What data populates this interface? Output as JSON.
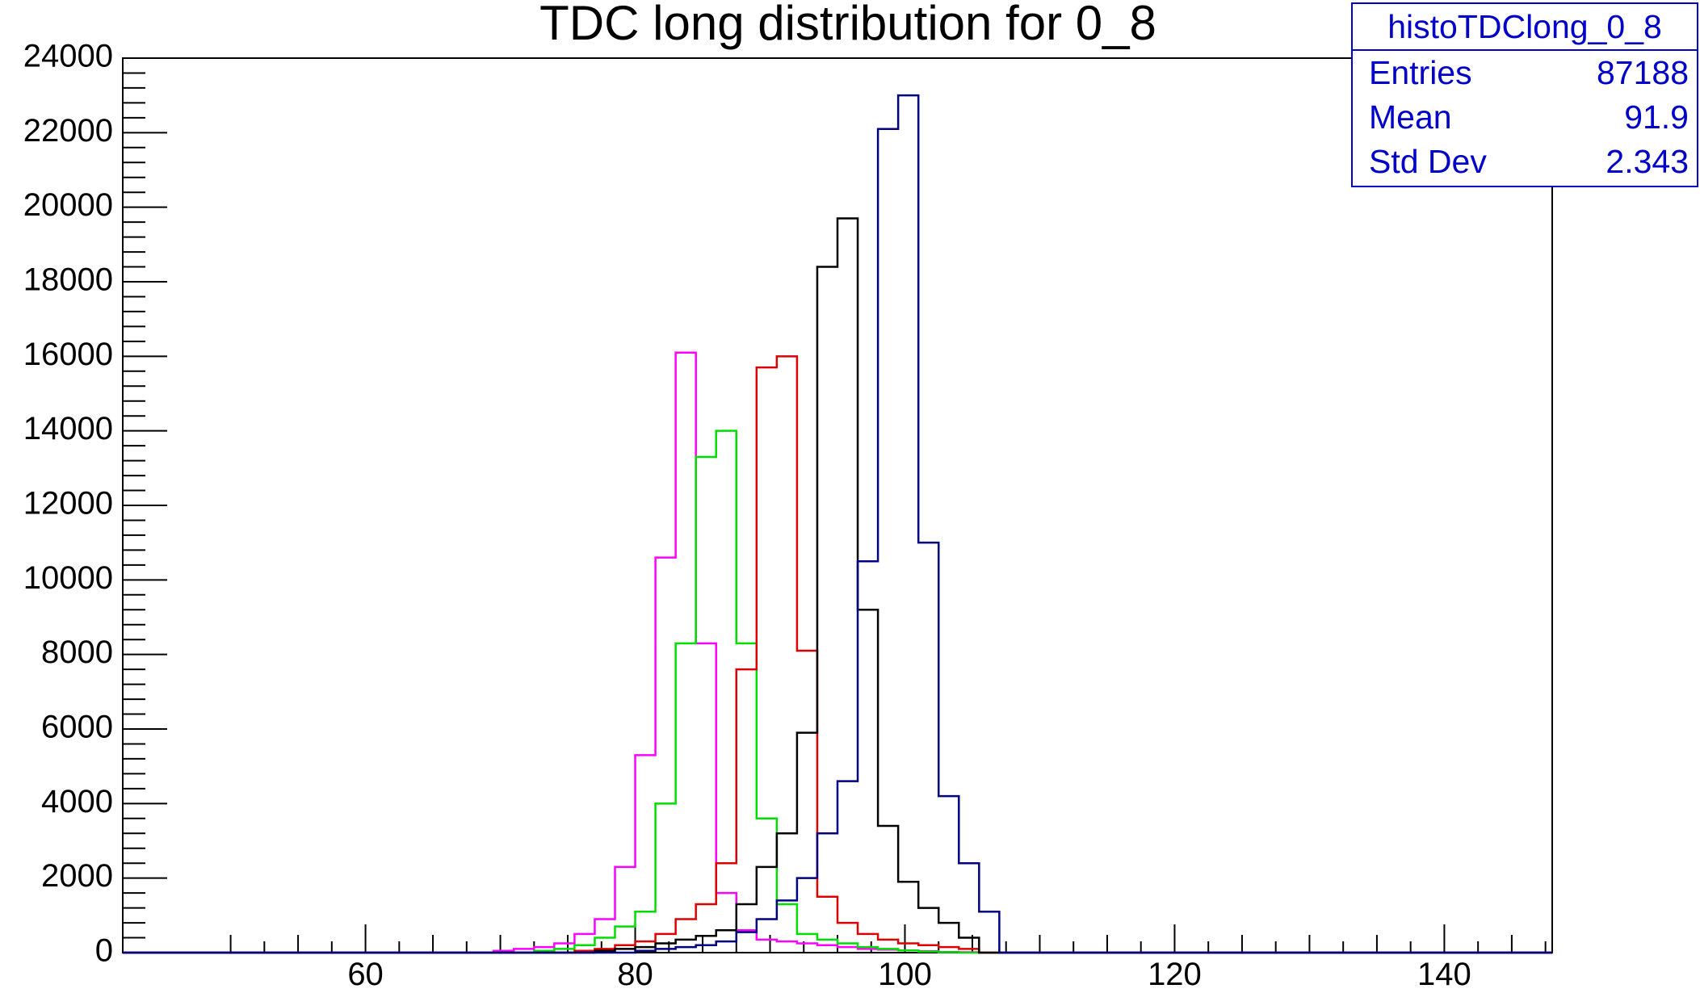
{
  "chart_data": {
    "type": "histogram",
    "title": "TDC long distribution for 0_8",
    "xlim": [
      42,
      148
    ],
    "ylim": [
      0,
      24000
    ],
    "x_ticks": [
      60,
      80,
      100,
      120,
      140
    ],
    "y_ticks": [
      0,
      2000,
      4000,
      6000,
      8000,
      10000,
      12000,
      14000,
      16000,
      18000,
      20000,
      22000,
      24000
    ],
    "bin_width": 1.5,
    "bins_start": 60.5,
    "grid": false,
    "series": [
      {
        "color": "#ff00ff",
        "values": [
          0,
          0,
          0,
          0,
          0,
          0,
          50,
          100,
          150,
          250,
          500,
          900,
          2300,
          5300,
          10600,
          16100,
          8300,
          1600,
          600,
          350,
          300,
          250,
          200,
          150,
          100,
          80,
          60,
          40,
          20,
          10,
          0
        ]
      },
      {
        "color": "#00dd00",
        "values": [
          0,
          0,
          0,
          0,
          0,
          0,
          0,
          0,
          50,
          100,
          200,
          400,
          700,
          1100,
          4000,
          8300,
          13300,
          14000,
          8300,
          3600,
          1300,
          500,
          350,
          250,
          150,
          100,
          60,
          30,
          10,
          0,
          0
        ]
      },
      {
        "color": "#dd0000",
        "values": [
          0,
          0,
          0,
          0,
          0,
          0,
          0,
          0,
          0,
          0,
          50,
          100,
          200,
          300,
          500,
          900,
          1300,
          2400,
          7600,
          15700,
          16000,
          8100,
          1500,
          800,
          500,
          350,
          250,
          200,
          150,
          100,
          0
        ]
      },
      {
        "color": "#000000",
        "values": [
          0,
          0,
          0,
          0,
          0,
          0,
          0,
          0,
          0,
          0,
          0,
          50,
          100,
          150,
          250,
          350,
          450,
          600,
          1300,
          2300,
          3200,
          5900,
          18400,
          19700,
          9200,
          3400,
          1900,
          1200,
          800,
          400,
          0
        ]
      },
      {
        "color": "#000080",
        "values": [
          0,
          0,
          0,
          0,
          0,
          0,
          0,
          0,
          0,
          0,
          0,
          0,
          0,
          50,
          100,
          150,
          200,
          300,
          550,
          900,
          1400,
          2000,
          3200,
          4600,
          10500,
          22100,
          23000,
          11000,
          4200,
          2400,
          1100
        ]
      }
    ],
    "stats": {
      "name": "histoTDClong_0_8",
      "rows": [
        {
          "label": "Entries",
          "value": "87188"
        },
        {
          "label": "Mean",
          "value": "91.9"
        },
        {
          "label": "Std Dev",
          "value": "2.343"
        }
      ]
    }
  }
}
